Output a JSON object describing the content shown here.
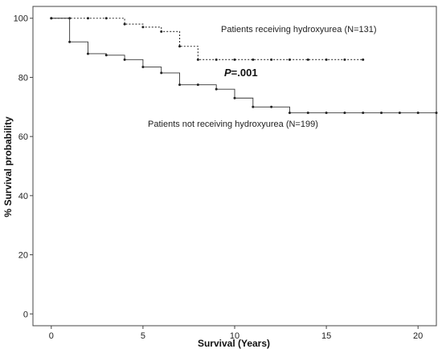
{
  "chart_data": {
    "type": "line",
    "xlabel": "Survival (Years)",
    "ylabel": "% Survival probability",
    "xlim": [
      -1,
      21
    ],
    "ylim": [
      -4,
      104
    ],
    "xticks": [
      0,
      5,
      10,
      15,
      20
    ],
    "yticks": [
      0,
      20,
      40,
      60,
      80,
      100
    ],
    "grid": false,
    "legend": "none",
    "series": [
      {
        "name": "Patients receiving hydroxyurea (N=131)",
        "line_style": "dotted",
        "color": "#333333",
        "x": [
          0,
          1,
          2,
          3,
          4,
          5,
          6,
          7,
          8,
          9,
          10,
          11,
          12,
          13,
          14,
          15,
          16,
          17
        ],
        "y": [
          100,
          100,
          100,
          100,
          98,
          97,
          95.5,
          90.5,
          86,
          86,
          86,
          86,
          86,
          86,
          86,
          86,
          86,
          86
        ]
      },
      {
        "name": "Patients not receiving hydroxyurea (N=199)",
        "line_style": "solid",
        "color": "#333333",
        "x": [
          0,
          1,
          2,
          3,
          4,
          5,
          6,
          7,
          8,
          9,
          10,
          11,
          12,
          13,
          14,
          15,
          16,
          17,
          18,
          19,
          20,
          21
        ],
        "y": [
          100,
          92,
          88,
          87.5,
          86,
          83.5,
          81.5,
          77.5,
          77.5,
          76,
          73,
          70,
          70,
          68,
          68,
          68,
          68,
          68,
          68,
          68,
          68,
          68
        ]
      }
    ],
    "annotations": {
      "p_prefix": "P",
      "p_value": "=.001"
    }
  }
}
